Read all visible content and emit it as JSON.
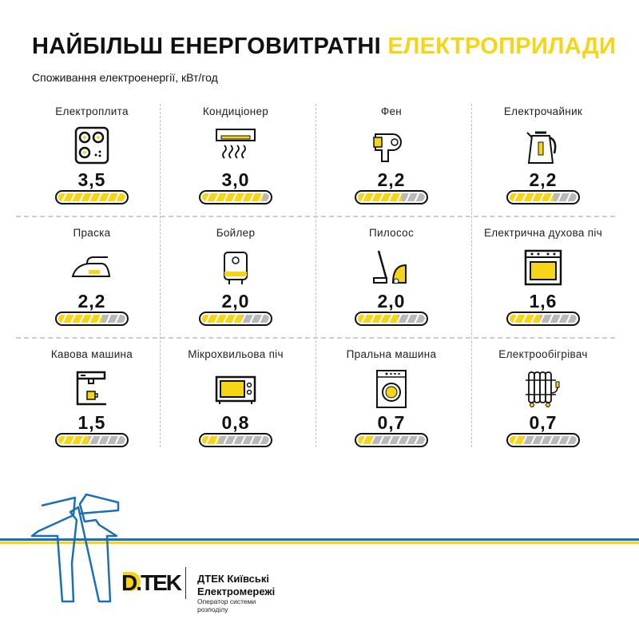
{
  "header": {
    "title_main": "НАЙБІЛЬШ ЕНЕРГОВИТРАТНІ",
    "title_highlight": "ЕЛЕКТРОПРИЛАДИ",
    "subtitle": "Споживання електроенергії, кВт/год"
  },
  "colors": {
    "accent": "#f5d515",
    "empty": "#b9b9b9",
    "brand_blue": "#1b6fb5"
  },
  "items": [
    {
      "label": "Електроплита",
      "value": "3,5",
      "fill": 1.0,
      "icon": "stove-icon"
    },
    {
      "label": "Кондиціонер",
      "value": "3,0",
      "fill": 0.9,
      "icon": "air-conditioner-icon"
    },
    {
      "label": "Фен",
      "value": "2,2",
      "fill": 0.65,
      "icon": "hair-dryer-icon"
    },
    {
      "label": "Електрочайник",
      "value": "2,2",
      "fill": 0.65,
      "icon": "kettle-icon"
    },
    {
      "label": "Праска",
      "value": "2,2",
      "fill": 0.65,
      "icon": "iron-icon"
    },
    {
      "label": "Бойлер",
      "value": "2,0",
      "fill": 0.6,
      "icon": "boiler-icon"
    },
    {
      "label": "Пилосос",
      "value": "2,0",
      "fill": 0.6,
      "icon": "vacuum-icon"
    },
    {
      "label": "Електрична духова піч",
      "value": "1,6",
      "fill": 0.45,
      "icon": "oven-icon"
    },
    {
      "label": "Кавова машина",
      "value": "1,5",
      "fill": 0.45,
      "icon": "coffee-machine-icon"
    },
    {
      "label": "Мікрохвильова піч",
      "value": "0,8",
      "fill": 0.25,
      "icon": "microwave-icon"
    },
    {
      "label": "Пральна машина",
      "value": "0,7",
      "fill": 0.22,
      "icon": "washing-machine-icon"
    },
    {
      "label": "Електрообігрівач",
      "value": "0,7",
      "fill": 0.22,
      "icon": "heater-icon"
    }
  ],
  "footer": {
    "logo": "DTEK",
    "brand_line1": "ДТЕК Київські",
    "brand_line2": "Електромережі",
    "tagline_line1": "Оператор системи",
    "tagline_line2": "розподілу"
  }
}
